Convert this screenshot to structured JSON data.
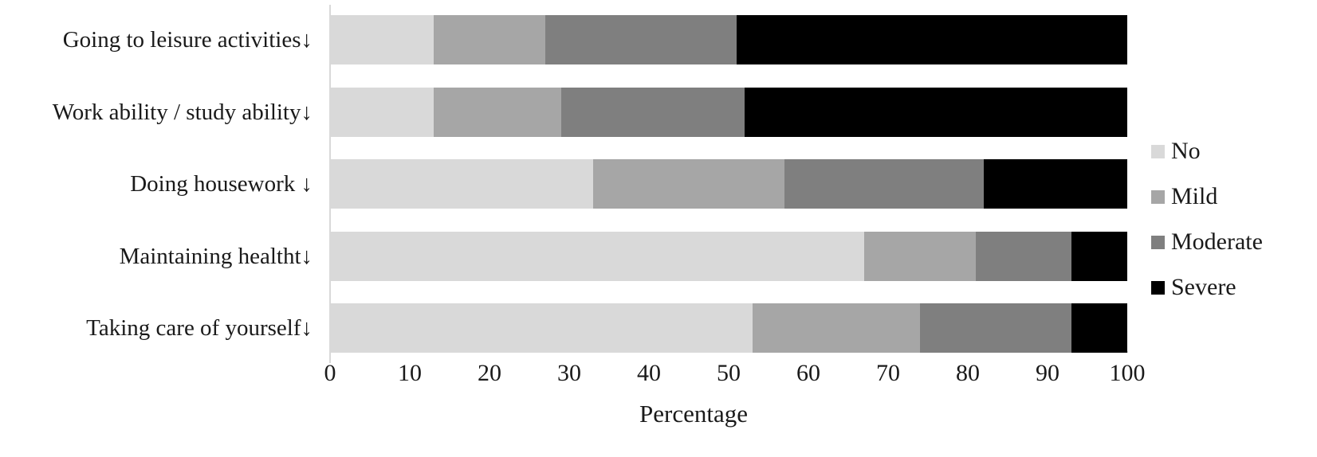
{
  "chart_data": {
    "type": "bar",
    "orientation": "horizontal",
    "stacked": true,
    "title": "",
    "xlabel": "Percentage",
    "ylabel": "",
    "xlim": [
      0,
      100
    ],
    "xticks": [
      0,
      10,
      20,
      30,
      40,
      50,
      60,
      70,
      80,
      90,
      100
    ],
    "grid": false,
    "legend_position": "right",
    "categories": [
      "Going to leisure activities↓",
      "Work ability / study ability↓",
      "Doing housework ↓",
      "Maintaining healtht↓",
      "Taking care of yourself↓"
    ],
    "series": [
      {
        "name": "No",
        "color": "#d9d9d9",
        "values": [
          13,
          13,
          33,
          67,
          53
        ]
      },
      {
        "name": "Mild",
        "color": "#a6a6a6",
        "values": [
          14,
          16,
          24,
          14,
          21
        ]
      },
      {
        "name": "Moderate",
        "color": "#7f7f7f",
        "values": [
          24,
          23,
          25,
          12,
          19
        ]
      },
      {
        "name": "Severe",
        "color": "#000000",
        "values": [
          49,
          48,
          18,
          7,
          7
        ]
      }
    ]
  }
}
